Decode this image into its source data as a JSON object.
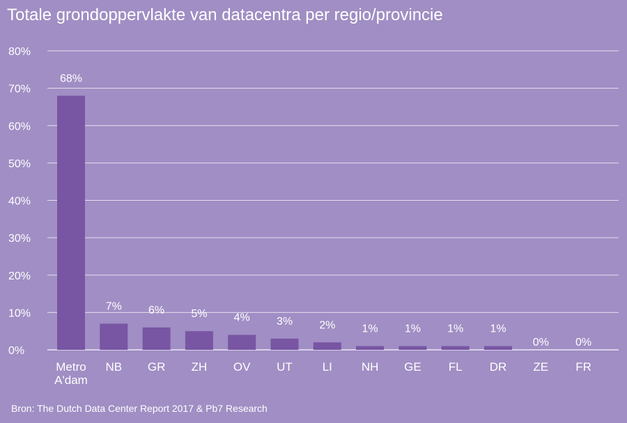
{
  "chart_data": {
    "type": "bar",
    "title": "Totale grondoppervlakte van datacentra per regio/provincie",
    "categories": [
      "Metro\nA'dam",
      "NB",
      "GR",
      "ZH",
      "OV",
      "UT",
      "LI",
      "NH",
      "GE",
      "FL",
      "DR",
      "ZE",
      "FR"
    ],
    "values": [
      68,
      7,
      6,
      5,
      4,
      3,
      2,
      1,
      1,
      1,
      1,
      0,
      0
    ],
    "data_labels": [
      "68%",
      "7%",
      "6%",
      "5%",
      "4%",
      "3%",
      "2%",
      "1%",
      "1%",
      "1%",
      "1%",
      "0%",
      "0%"
    ],
    "y_ticks": [
      "0%",
      "10%",
      "20%",
      "30%",
      "40%",
      "50%",
      "60%",
      "70%",
      "80%"
    ],
    "ylim": [
      0,
      80
    ],
    "xlabel": "",
    "ylabel": "",
    "grid": true,
    "colors": {
      "background": "#a08ec4",
      "bar": "#7856a3",
      "grid": "#e6e0f0"
    }
  },
  "source": "Bron: The Dutch Data Center Report 2017 & Pb7 Research"
}
